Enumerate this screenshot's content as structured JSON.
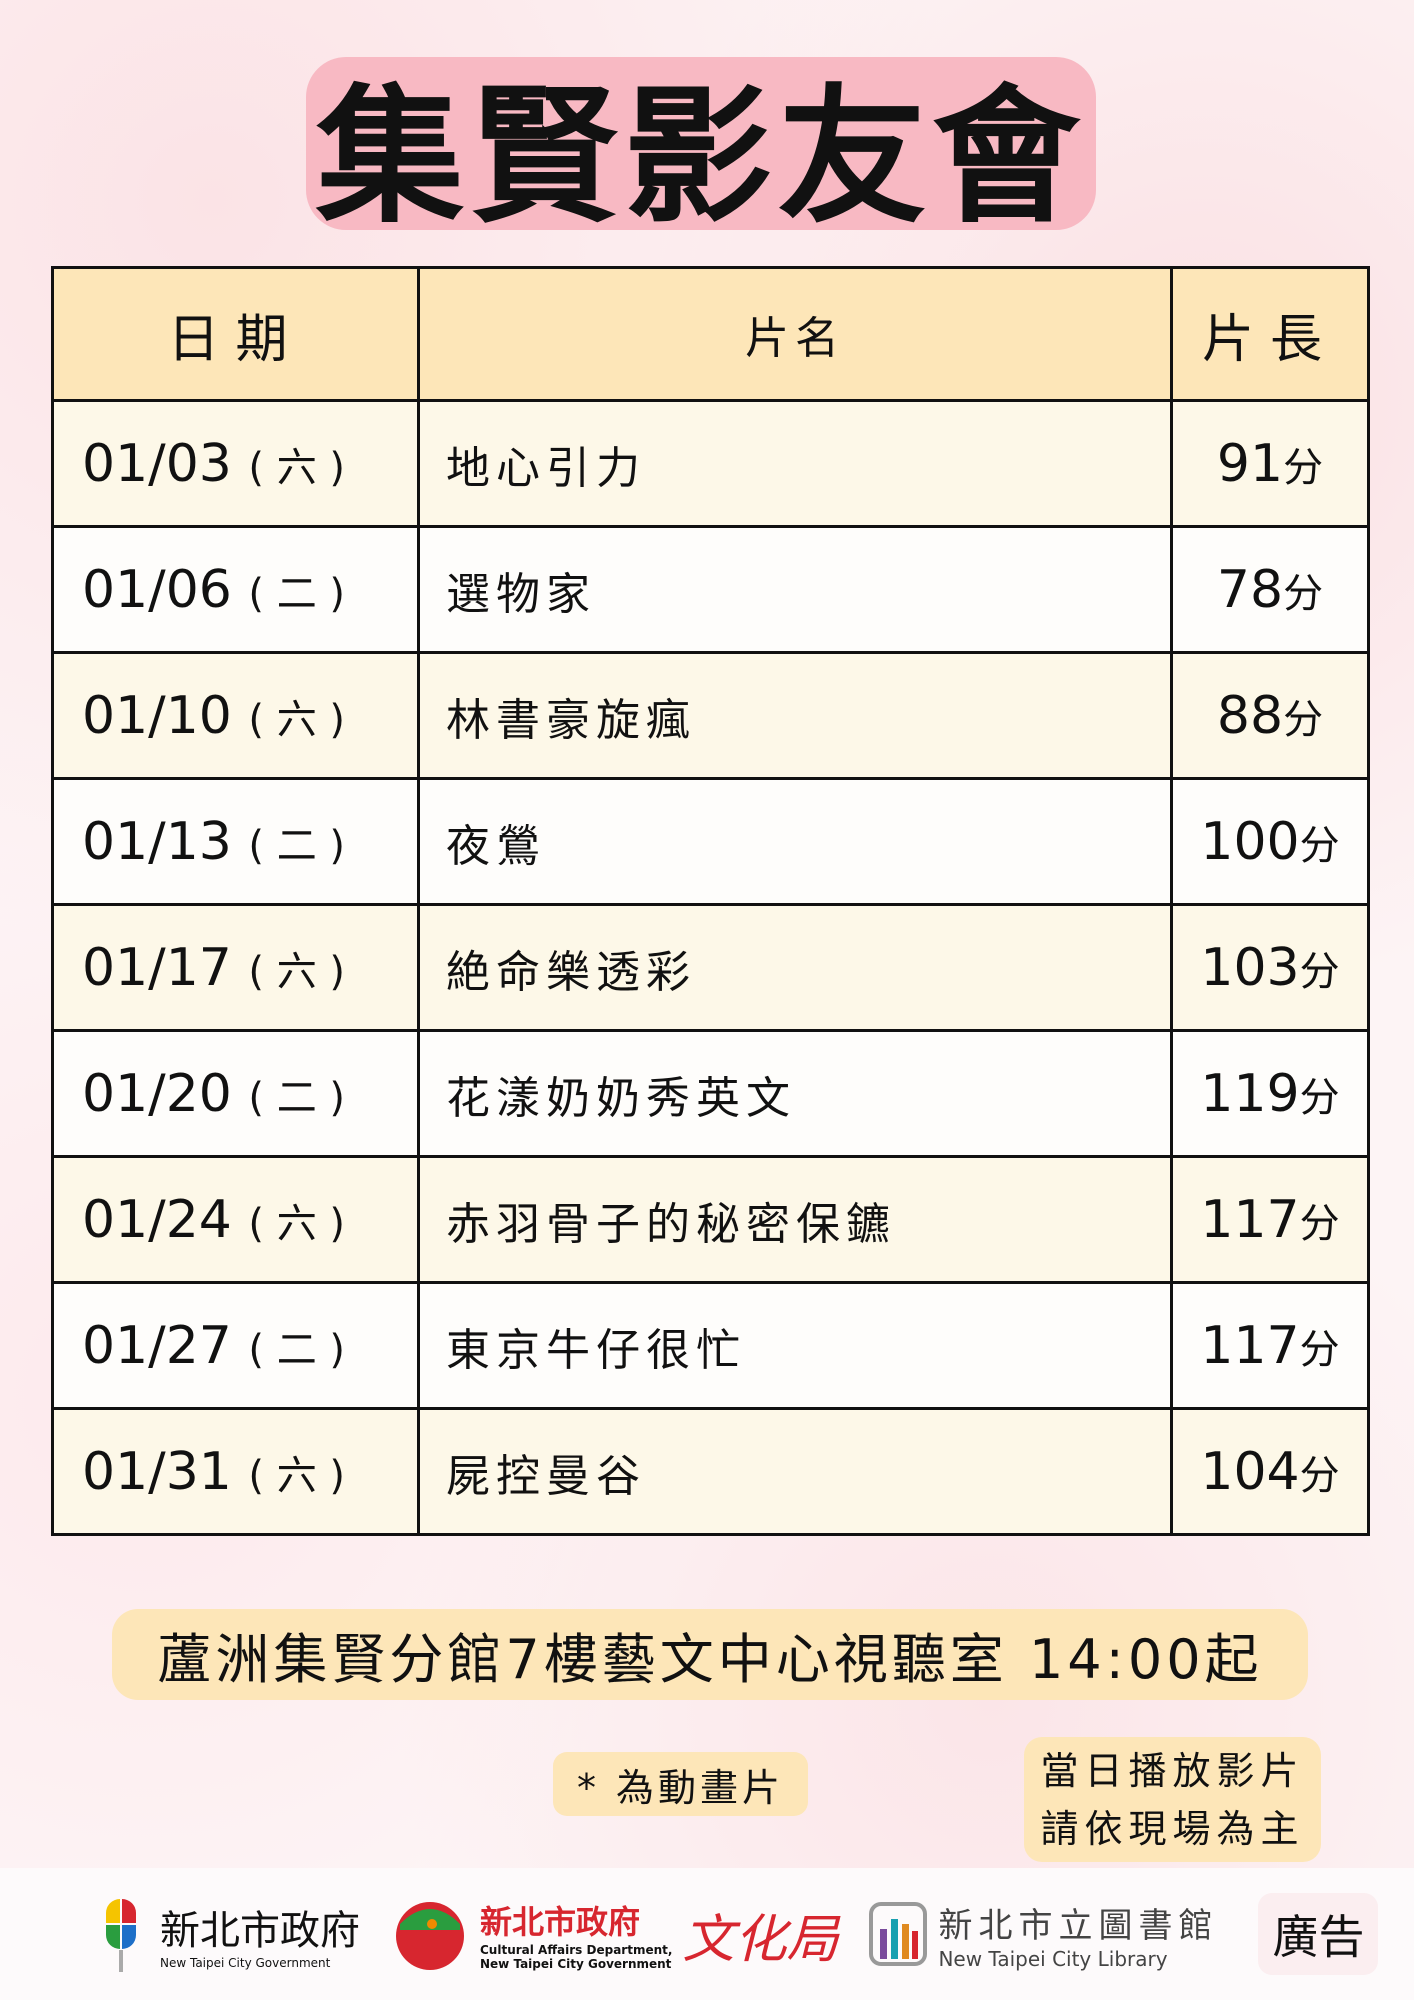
{
  "title": "集賢影友會",
  "table": {
    "headers": [
      "日期",
      "片名",
      "片長"
    ],
    "rows": [
      {
        "date": "01/03",
        "day": "( 六 )",
        "film": "地心引力",
        "length": "91",
        "unit": "分"
      },
      {
        "date": "01/06",
        "day": "( 二 )",
        "film": "選物家",
        "length": "78",
        "unit": "分"
      },
      {
        "date": "01/10",
        "day": "( 六 )",
        "film": "林書豪旋瘋",
        "length": "88",
        "unit": "分"
      },
      {
        "date": "01/13",
        "day": "( 二 )",
        "film": "夜鶯",
        "length": "100",
        "unit": "分"
      },
      {
        "date": "01/17",
        "day": "( 六 )",
        "film": "絶命樂透彩",
        "length": "103",
        "unit": "分"
      },
      {
        "date": "01/20",
        "day": "( 二 )",
        "film": "花漾奶奶秀英文",
        "length": "119",
        "unit": "分"
      },
      {
        "date": "01/24",
        "day": "( 六 )",
        "film": "赤羽骨子的秘密保鑣",
        "length": "117",
        "unit": "分"
      },
      {
        "date": "01/27",
        "day": "( 二 )",
        "film": "東京牛仔很忙",
        "length": "117",
        "unit": "分"
      },
      {
        "date": "01/31",
        "day": "( 六 )",
        "film": "屍控曼谷",
        "length": "104",
        "unit": "分"
      }
    ]
  },
  "location": "蘆洲集賢分館7樓藝文中心視聽室 14:00起",
  "note_animation": "* 為動畫片",
  "note_schedule": [
    "當日播放影片",
    "請依現場為主"
  ],
  "footer": {
    "gov": {
      "zh": "新北市政府",
      "en": "New Taipei City Government"
    },
    "culture": {
      "zh": "新北市政府",
      "en1": "Cultural Affairs Department,",
      "en2": "New Taipei City Government",
      "mark": "文化局"
    },
    "library": {
      "zh": "新北市立圖書館",
      "en": "New Taipei City Library"
    },
    "ad": "廣告"
  },
  "colors": {
    "title_bg": "#f8b9c3",
    "header_bg": "#fde6b8",
    "row_cream": "#fdf8e8",
    "culture_red": "#d7262f"
  }
}
